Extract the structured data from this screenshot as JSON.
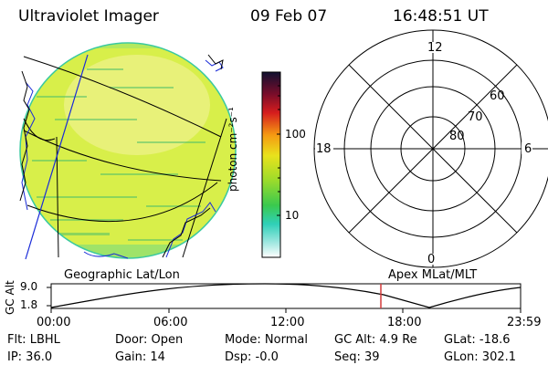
{
  "header": {
    "title": "Ultraviolet Imager",
    "date": "09 Feb 07",
    "time": "16:48:51 UT"
  },
  "colorbar": {
    "unit": "photon cm⁻²s⁻¹",
    "ticks": [
      "100",
      "10"
    ]
  },
  "polar": {
    "labels": {
      "top": "12",
      "left": "18",
      "right": "6",
      "bottom": "0"
    },
    "latitudes": [
      "60",
      "70",
      "80"
    ]
  },
  "labels": {
    "geo": "Geographic Lat/Lon",
    "apex": "Apex MLat/MLT"
  },
  "altitude": {
    "axis_label": "GC Alt",
    "ymax": "9.0",
    "ymin": "1.8",
    "xticks": [
      "00:00",
      "06:00",
      "12:00",
      "18:00",
      "23:59"
    ]
  },
  "footer": {
    "row1": {
      "flt": "Flt: LBHL",
      "door": "Door: Open",
      "mode": "Mode: Normal",
      "gcalt": "GC Alt: 4.9 Re",
      "glat": "GLat: -18.6"
    },
    "row2": {
      "ip": "IP: 36.0",
      "gain": "Gain: 14",
      "dsp": "Dsp:   -0.0",
      "seq": "Seq: 39",
      "glon": "GLon: 302.1"
    }
  },
  "colors": {
    "aurora_fill": "#d8ef4a",
    "bright_fill": "#f2f08a",
    "marker": "#d23b3b",
    "coast_line": "#1a2bd8"
  }
}
